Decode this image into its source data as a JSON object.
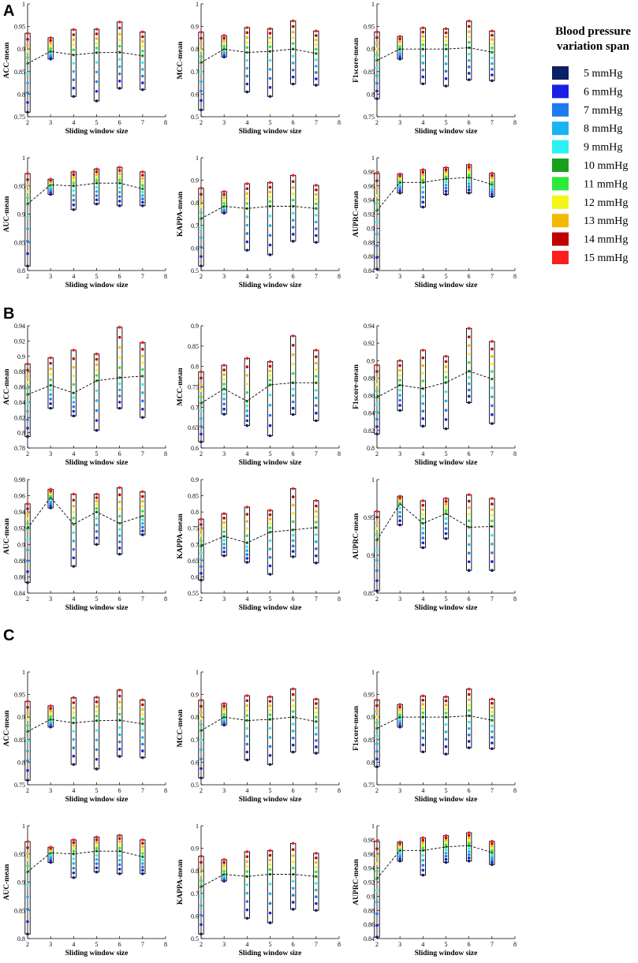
{
  "panels": [
    "A",
    "B",
    "C"
  ],
  "legend": {
    "title_line1": "Blood pressure",
    "title_line2": "variation span",
    "items": [
      {
        "label": "5 mmHg",
        "color": "#0b1f66"
      },
      {
        "label": "6 mmHg",
        "color": "#1a1ee6"
      },
      {
        "label": "7 mmHg",
        "color": "#1e7bf0"
      },
      {
        "label": "8 mmHg",
        "color": "#19b4f0"
      },
      {
        "label": "9 mmHg",
        "color": "#2ef0f0"
      },
      {
        "label": "10 mmHg",
        "color": "#16a01e"
      },
      {
        "label": "11 mmHg",
        "color": "#2ee83a"
      },
      {
        "label": "12 mmHg",
        "color": "#f5f51a"
      },
      {
        "label": "13 mmHg",
        "color": "#f5b800"
      },
      {
        "label": "14 mmHg",
        "color": "#c00000"
      },
      {
        "label": "15 mmHg",
        "color": "#ff1e1e"
      }
    ]
  },
  "chart_data": [
    {
      "panel": "A",
      "type": "line",
      "title": "",
      "xlabel": "Sliding window size",
      "ylabel": "ACC-mean",
      "xlim": [
        2,
        8
      ],
      "ylim": [
        0.75,
        1
      ],
      "yticks": [
        0.75,
        0.8,
        0.85,
        0.9,
        0.95,
        1
      ],
      "yticklabels": [
        "0.75",
        "0.8",
        "0.85",
        "0.9",
        "0.95",
        "1"
      ],
      "x": [
        2,
        3,
        4,
        5,
        6,
        7
      ],
      "mean": [
        0.868,
        0.895,
        0.887,
        0.892,
        0.893,
        0.885
      ],
      "range_min": [
        0.76,
        0.878,
        0.795,
        0.785,
        0.813,
        0.81
      ],
      "range_max": [
        0.935,
        0.925,
        0.943,
        0.944,
        0.96,
        0.938
      ]
    },
    {
      "panel": "A",
      "type": "line",
      "title": "",
      "xlabel": "Sliding window size",
      "ylabel": "MCC-mean",
      "xlim": [
        2,
        8
      ],
      "ylim": [
        0.5,
        1
      ],
      "yticks": [
        0.5,
        0.6,
        0.7,
        0.8,
        0.9,
        1
      ],
      "yticklabels": [
        "0.5",
        "0.6",
        "0.7",
        "0.8",
        "0.9",
        "1"
      ],
      "x": [
        2,
        3,
        4,
        5,
        6,
        7
      ],
      "mean": [
        0.74,
        0.8,
        0.785,
        0.79,
        0.8,
        0.78
      ],
      "range_min": [
        0.53,
        0.765,
        0.61,
        0.59,
        0.645,
        0.64
      ],
      "range_max": [
        0.875,
        0.86,
        0.895,
        0.89,
        0.925,
        0.88
      ]
    },
    {
      "panel": "A",
      "type": "line",
      "title": "",
      "xlabel": "Sliding window size",
      "ylabel": "F1score-mean",
      "xlim": [
        2,
        8
      ],
      "ylim": [
        0.75,
        1
      ],
      "yticks": [
        0.75,
        0.8,
        0.85,
        0.9,
        0.95,
        1
      ],
      "yticklabels": [
        "0.75",
        "0.8",
        "0.85",
        "0.9",
        "0.95",
        "1"
      ],
      "x": [
        2,
        3,
        4,
        5,
        6,
        7
      ],
      "mean": [
        0.875,
        0.9,
        0.9,
        0.9,
        0.903,
        0.893
      ],
      "range_min": [
        0.79,
        0.878,
        0.823,
        0.818,
        0.832,
        0.83
      ],
      "range_max": [
        0.938,
        0.928,
        0.947,
        0.945,
        0.962,
        0.94
      ]
    },
    {
      "panel": "A",
      "type": "line",
      "title": "",
      "xlabel": "Sliding window size",
      "ylabel": "AUC-mean",
      "xlim": [
        2,
        8
      ],
      "ylim": [
        0.8,
        1
      ],
      "yticks": [
        0.8,
        0.85,
        0.9,
        0.95,
        1
      ],
      "yticklabels": [
        "0.8",
        "0.85",
        "0.9",
        "0.95",
        "1"
      ],
      "x": [
        2,
        3,
        4,
        5,
        6,
        7
      ],
      "mean": [
        0.918,
        0.952,
        0.95,
        0.955,
        0.955,
        0.945
      ],
      "range_min": [
        0.808,
        0.935,
        0.908,
        0.918,
        0.915,
        0.915
      ],
      "range_max": [
        0.972,
        0.962,
        0.975,
        0.98,
        0.983,
        0.975
      ]
    },
    {
      "panel": "A",
      "type": "line",
      "title": "",
      "xlabel": "Sliding window size",
      "ylabel": "KAPPA-mean",
      "xlim": [
        2,
        8
      ],
      "ylim": [
        0.5,
        1
      ],
      "yticks": [
        0.5,
        0.6,
        0.7,
        0.8,
        0.9,
        1
      ],
      "yticklabels": [
        "0.5",
        "0.6",
        "0.7",
        "0.8",
        "0.9",
        "1"
      ],
      "x": [
        2,
        3,
        4,
        5,
        6,
        7
      ],
      "mean": [
        0.73,
        0.785,
        0.775,
        0.785,
        0.785,
        0.775
      ],
      "range_min": [
        0.52,
        0.755,
        0.59,
        0.57,
        0.63,
        0.625
      ],
      "range_max": [
        0.865,
        0.85,
        0.885,
        0.89,
        0.922,
        0.878
      ]
    },
    {
      "panel": "A",
      "type": "line",
      "title": "",
      "xlabel": "Sliding window size",
      "ylabel": "AUPRC-mean",
      "xlim": [
        2,
        8
      ],
      "ylim": [
        0.84,
        1
      ],
      "yticks": [
        0.84,
        0.86,
        0.88,
        0.9,
        0.92,
        0.94,
        0.96,
        0.98,
        1
      ],
      "yticklabels": [
        "0.84",
        "0.86",
        "0.88",
        "0.9",
        "0.92",
        "0.94",
        "0.96",
        "0.98",
        "1"
      ],
      "x": [
        2,
        3,
        4,
        5,
        6,
        7
      ],
      "mean": [
        0.925,
        0.965,
        0.965,
        0.97,
        0.972,
        0.962
      ],
      "range_min": [
        0.842,
        0.95,
        0.93,
        0.948,
        0.95,
        0.945
      ],
      "range_max": [
        0.978,
        0.977,
        0.983,
        0.986,
        0.99,
        0.978
      ]
    },
    {
      "panel": "B",
      "type": "line",
      "title": "",
      "xlabel": "Sliding window size",
      "ylabel": "ACC-mean",
      "xlim": [
        2,
        8
      ],
      "ylim": [
        0.78,
        0.94
      ],
      "yticks": [
        0.78,
        0.8,
        0.82,
        0.84,
        0.86,
        0.88,
        0.9,
        0.92,
        0.94
      ],
      "yticklabels": [
        "0.78",
        "0.8",
        "0.82",
        "0.84",
        "0.86",
        "0.88",
        "0.9",
        "0.92",
        "0.94"
      ],
      "x": [
        2,
        3,
        4,
        5,
        6,
        7
      ],
      "mean": [
        0.85,
        0.862,
        0.852,
        0.868,
        0.872,
        0.874
      ],
      "range_min": [
        0.795,
        0.832,
        0.822,
        0.803,
        0.832,
        0.82
      ],
      "range_max": [
        0.89,
        0.898,
        0.908,
        0.903,
        0.938,
        0.918
      ]
    },
    {
      "panel": "B",
      "type": "line",
      "title": "",
      "xlabel": "Sliding window size",
      "ylabel": "MCC-mean",
      "xlim": [
        2,
        8
      ],
      "ylim": [
        0.6,
        0.9
      ],
      "yticks": [
        0.6,
        0.65,
        0.7,
        0.75,
        0.8,
        0.85,
        0.9
      ],
      "yticklabels": [
        "0.6",
        "0.65",
        "0.7",
        "0.75",
        "0.8",
        "0.85",
        "0.9"
      ],
      "x": [
        2,
        3,
        4,
        5,
        6,
        7
      ],
      "mean": [
        0.71,
        0.745,
        0.715,
        0.755,
        0.76,
        0.76
      ],
      "range_min": [
        0.615,
        0.683,
        0.655,
        0.63,
        0.682,
        0.667
      ],
      "range_max": [
        0.787,
        0.803,
        0.82,
        0.812,
        0.875,
        0.84
      ]
    },
    {
      "panel": "B",
      "type": "line",
      "title": "",
      "xlabel": "Sliding window size",
      "ylabel": "F1score-mean",
      "xlim": [
        2,
        8
      ],
      "ylim": [
        0.8,
        0.94
      ],
      "yticks": [
        0.8,
        0.82,
        0.84,
        0.86,
        0.88,
        0.9,
        0.92,
        0.94
      ],
      "yticklabels": [
        "0.8",
        "0.82",
        "0.84",
        "0.86",
        "0.88",
        "0.9",
        "0.92",
        "0.94"
      ],
      "x": [
        2,
        3,
        4,
        5,
        6,
        7
      ],
      "mean": [
        0.858,
        0.872,
        0.868,
        0.875,
        0.888,
        0.879
      ],
      "range_min": [
        0.816,
        0.843,
        0.825,
        0.822,
        0.852,
        0.828
      ],
      "range_max": [
        0.895,
        0.9,
        0.912,
        0.905,
        0.937,
        0.922
      ]
    },
    {
      "panel": "B",
      "type": "line",
      "title": "",
      "xlabel": "Sliding window size",
      "ylabel": "AUC-mean",
      "xlim": [
        2,
        8
      ],
      "ylim": [
        0.84,
        0.98
      ],
      "yticks": [
        0.84,
        0.86,
        0.88,
        0.9,
        0.92,
        0.94,
        0.96,
        0.98
      ],
      "yticklabels": [
        "0.84",
        "0.86",
        "0.88",
        "0.9",
        "0.92",
        "0.94",
        "0.96",
        "0.98"
      ],
      "x": [
        2,
        3,
        4,
        5,
        6,
        7
      ],
      "mean": [
        0.92,
        0.958,
        0.925,
        0.94,
        0.926,
        0.935
      ],
      "range_min": [
        0.853,
        0.945,
        0.873,
        0.9,
        0.888,
        0.912
      ],
      "range_max": [
        0.95,
        0.968,
        0.962,
        0.962,
        0.97,
        0.965
      ]
    },
    {
      "panel": "B",
      "type": "line",
      "title": "",
      "xlabel": "Sliding window size",
      "ylabel": "KAPPA-mean",
      "xlim": [
        2,
        8
      ],
      "ylim": [
        0.55,
        0.9
      ],
      "yticks": [
        0.55,
        0.6,
        0.65,
        0.7,
        0.75,
        0.8,
        0.85,
        0.9
      ],
      "yticklabels": [
        "0.55",
        "0.6",
        "0.65",
        "0.7",
        "0.75",
        "0.8",
        "0.85",
        "0.9"
      ],
      "x": [
        2,
        3,
        4,
        5,
        6,
        7
      ],
      "mean": [
        0.695,
        0.725,
        0.705,
        0.738,
        0.745,
        0.752
      ],
      "range_min": [
        0.59,
        0.665,
        0.645,
        0.608,
        0.662,
        0.643
      ],
      "range_max": [
        0.778,
        0.795,
        0.815,
        0.805,
        0.872,
        0.835
      ]
    },
    {
      "panel": "B",
      "type": "line",
      "title": "",
      "xlabel": "Sliding window size",
      "ylabel": "AUPRC-mean",
      "xlim": [
        2,
        8
      ],
      "ylim": [
        0.85,
        1
      ],
      "yticks": [
        0.85,
        0.9,
        0.95,
        1
      ],
      "yticklabels": [
        "0.85",
        "0.9",
        "0.95",
        "1"
      ],
      "x": [
        2,
        3,
        4,
        5,
        6,
        7
      ],
      "mean": [
        0.92,
        0.968,
        0.942,
        0.955,
        0.937,
        0.938
      ],
      "range_min": [
        0.853,
        0.94,
        0.91,
        0.922,
        0.88,
        0.88
      ],
      "range_max": [
        0.958,
        0.978,
        0.972,
        0.975,
        0.98,
        0.975
      ]
    },
    {
      "panel": "C",
      "type": "line",
      "title": "",
      "xlabel": "Sliding window size",
      "ylabel": "ACC-mean",
      "xlim": [
        2,
        8
      ],
      "ylim": [
        0.75,
        1
      ],
      "yticks": [
        0.75,
        0.8,
        0.85,
        0.9,
        0.95,
        1
      ],
      "yticklabels": [
        "0.75",
        "0.8",
        "0.85",
        "0.9",
        "0.95",
        "1"
      ],
      "x": [
        2,
        3,
        4,
        5,
        6,
        7
      ],
      "mean": [
        0.868,
        0.895,
        0.887,
        0.892,
        0.893,
        0.885
      ],
      "range_min": [
        0.76,
        0.878,
        0.795,
        0.785,
        0.813,
        0.81
      ],
      "range_max": [
        0.935,
        0.925,
        0.943,
        0.944,
        0.96,
        0.938
      ]
    },
    {
      "panel": "C",
      "type": "line",
      "title": "",
      "xlabel": "Sliding window size",
      "ylabel": "MCC-mean",
      "xlim": [
        2,
        8
      ],
      "ylim": [
        0.5,
        1
      ],
      "yticks": [
        0.5,
        0.6,
        0.7,
        0.8,
        0.9,
        1
      ],
      "yticklabels": [
        "0.5",
        "0.6",
        "0.7",
        "0.8",
        "0.9",
        "1"
      ],
      "x": [
        2,
        3,
        4,
        5,
        6,
        7
      ],
      "mean": [
        0.74,
        0.8,
        0.785,
        0.79,
        0.8,
        0.78
      ],
      "range_min": [
        0.53,
        0.765,
        0.61,
        0.59,
        0.645,
        0.64
      ],
      "range_max": [
        0.875,
        0.86,
        0.895,
        0.89,
        0.925,
        0.88
      ]
    },
    {
      "panel": "C",
      "type": "line",
      "title": "",
      "xlabel": "Sliding window size",
      "ylabel": "F1score-mean",
      "xlim": [
        2,
        8
      ],
      "ylim": [
        0.75,
        1
      ],
      "yticks": [
        0.75,
        0.8,
        0.85,
        0.9,
        0.95,
        1
      ],
      "yticklabels": [
        "0.75",
        "0.8",
        "0.85",
        "0.9",
        "0.95",
        "1"
      ],
      "x": [
        2,
        3,
        4,
        5,
        6,
        7
      ],
      "mean": [
        0.875,
        0.9,
        0.9,
        0.9,
        0.903,
        0.893
      ],
      "range_min": [
        0.79,
        0.878,
        0.823,
        0.818,
        0.832,
        0.83
      ],
      "range_max": [
        0.938,
        0.928,
        0.947,
        0.945,
        0.962,
        0.94
      ]
    },
    {
      "panel": "C",
      "type": "line",
      "title": "",
      "xlabel": "Sliding window size",
      "ylabel": "AUC-mean",
      "xlim": [
        2,
        8
      ],
      "ylim": [
        0.8,
        1
      ],
      "yticks": [
        0.8,
        0.85,
        0.9,
        0.95,
        1
      ],
      "yticklabels": [
        "0.8",
        "0.85",
        "0.9",
        "0.95",
        "1"
      ],
      "x": [
        2,
        3,
        4,
        5,
        6,
        7
      ],
      "mean": [
        0.918,
        0.952,
        0.95,
        0.955,
        0.955,
        0.945
      ],
      "range_min": [
        0.808,
        0.935,
        0.908,
        0.918,
        0.915,
        0.915
      ],
      "range_max": [
        0.972,
        0.962,
        0.975,
        0.98,
        0.983,
        0.975
      ]
    },
    {
      "panel": "C",
      "type": "line",
      "title": "",
      "xlabel": "Sliding window size",
      "ylabel": "KAPPA-mean",
      "xlim": [
        2,
        8
      ],
      "ylim": [
        0.5,
        1
      ],
      "yticks": [
        0.5,
        0.6,
        0.7,
        0.8,
        0.9,
        1
      ],
      "yticklabels": [
        "0.5",
        "0.6",
        "0.7",
        "0.8",
        "0.9",
        "1"
      ],
      "x": [
        2,
        3,
        4,
        5,
        6,
        7
      ],
      "mean": [
        0.73,
        0.785,
        0.775,
        0.785,
        0.785,
        0.775
      ],
      "range_min": [
        0.52,
        0.755,
        0.59,
        0.57,
        0.63,
        0.625
      ],
      "range_max": [
        0.865,
        0.85,
        0.885,
        0.89,
        0.922,
        0.878
      ]
    },
    {
      "panel": "C",
      "type": "line",
      "title": "",
      "xlabel": "Sliding window size",
      "ylabel": "AUPRC-mean",
      "xlim": [
        2,
        8
      ],
      "ylim": [
        0.84,
        1
      ],
      "yticks": [
        0.84,
        0.86,
        0.88,
        0.9,
        0.92,
        0.94,
        0.96,
        0.98,
        1
      ],
      "yticklabels": [
        "0.84",
        "0.86",
        "0.88",
        "0.9",
        "0.92",
        "0.94",
        "0.96",
        "0.98",
        "1"
      ],
      "x": [
        2,
        3,
        4,
        5,
        6,
        7
      ],
      "mean": [
        0.925,
        0.965,
        0.965,
        0.97,
        0.972,
        0.962
      ],
      "range_min": [
        0.842,
        0.95,
        0.93,
        0.948,
        0.95,
        0.945
      ],
      "range_max": [
        0.978,
        0.977,
        0.983,
        0.986,
        0.99,
        0.978
      ]
    }
  ]
}
